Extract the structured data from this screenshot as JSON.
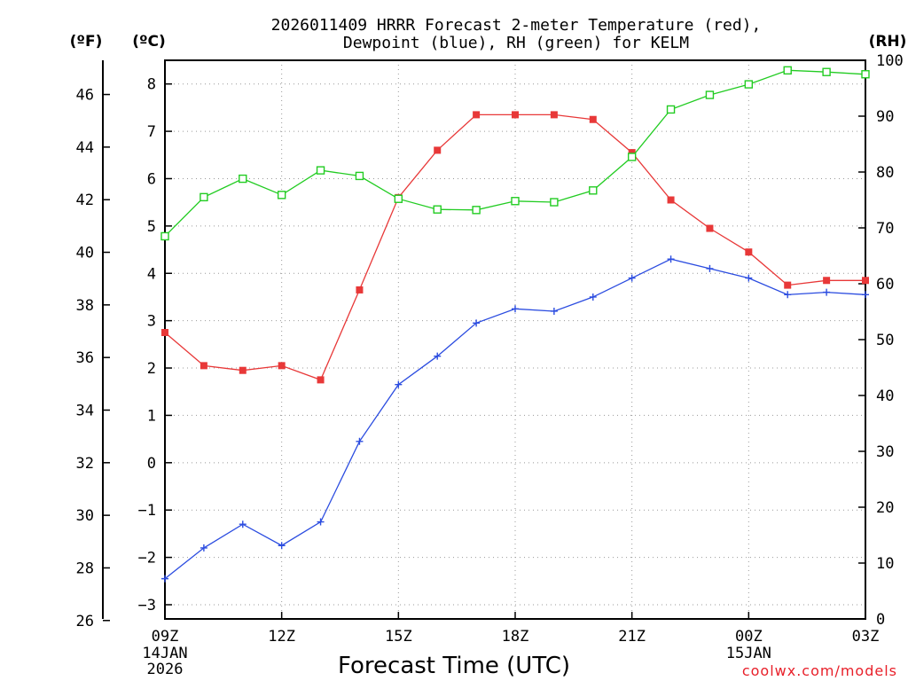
{
  "chart_data": {
    "type": "line",
    "title_line1": "2026011409 HRRR Forecast 2-meter Temperature (red),",
    "title_line2": "Dewpoint (blue), RH (green) for KELM",
    "xlabel": "Forecast Time (UTC)",
    "credit": "coolwx.com/models",
    "units": {
      "left_outer": "(ºF)",
      "left_inner": "(ºC)",
      "right": "(RH)"
    },
    "x_hours": [
      0,
      1,
      2,
      3,
      4,
      5,
      6,
      7,
      8,
      9,
      10,
      11,
      12,
      13,
      14,
      15,
      16,
      17,
      18
    ],
    "x_ticks": [
      {
        "hour": 0,
        "label": "09Z",
        "sub1": "14JAN",
        "sub2": "2026"
      },
      {
        "hour": 3,
        "label": "12Z"
      },
      {
        "hour": 6,
        "label": "15Z"
      },
      {
        "hour": 9,
        "label": "18Z"
      },
      {
        "hour": 12,
        "label": "21Z"
      },
      {
        "hour": 15,
        "label": "00Z",
        "sub1": "15JAN"
      },
      {
        "hour": 18,
        "label": "03Z"
      }
    ],
    "celsius_ticks": [
      "-3",
      "-2",
      "-1",
      "0",
      "1",
      "2",
      "3",
      "4",
      "5",
      "6",
      "7",
      "8"
    ],
    "fahrenheit_ticks": [
      "26",
      "28",
      "30",
      "32",
      "34",
      "36",
      "38",
      "40",
      "42",
      "44",
      "46"
    ],
    "rh_ticks": [
      "0",
      "10",
      "20",
      "30",
      "40",
      "50",
      "60",
      "70",
      "80",
      "90",
      "100"
    ],
    "ylim_c": [
      -3.3,
      8.5
    ],
    "ylim_rh": [
      0,
      100
    ],
    "series": [
      {
        "name": "Temperature (°C)",
        "color": "#e83838",
        "marker": "filled-square",
        "axis": "c",
        "values": [
          2.75,
          2.05,
          1.95,
          2.05,
          1.75,
          3.65,
          5.6,
          6.6,
          7.35,
          7.35,
          7.35,
          7.25,
          6.55,
          5.55,
          4.95,
          4.45,
          3.75,
          3.85,
          3.85
        ]
      },
      {
        "name": "Dewpoint (°C)",
        "color": "#2b4ce0",
        "marker": "plus",
        "axis": "c",
        "values": [
          -2.45,
          -1.8,
          -1.3,
          -1.75,
          -1.25,
          0.45,
          1.65,
          2.25,
          2.95,
          3.25,
          3.2,
          3.5,
          3.9,
          4.3,
          4.1,
          3.9,
          3.55,
          3.6,
          3.55
        ]
      },
      {
        "name": "RH (%)",
        "color": "#22cc22",
        "marker": "open-square",
        "axis": "rh",
        "values": [
          68.5,
          75.5,
          78.8,
          75.9,
          80.3,
          79.3,
          75.2,
          73.3,
          73.2,
          74.8,
          74.6,
          76.7,
          82.7,
          91.2,
          93.8,
          95.7,
          98.2,
          97.9,
          97.5
        ]
      }
    ]
  }
}
